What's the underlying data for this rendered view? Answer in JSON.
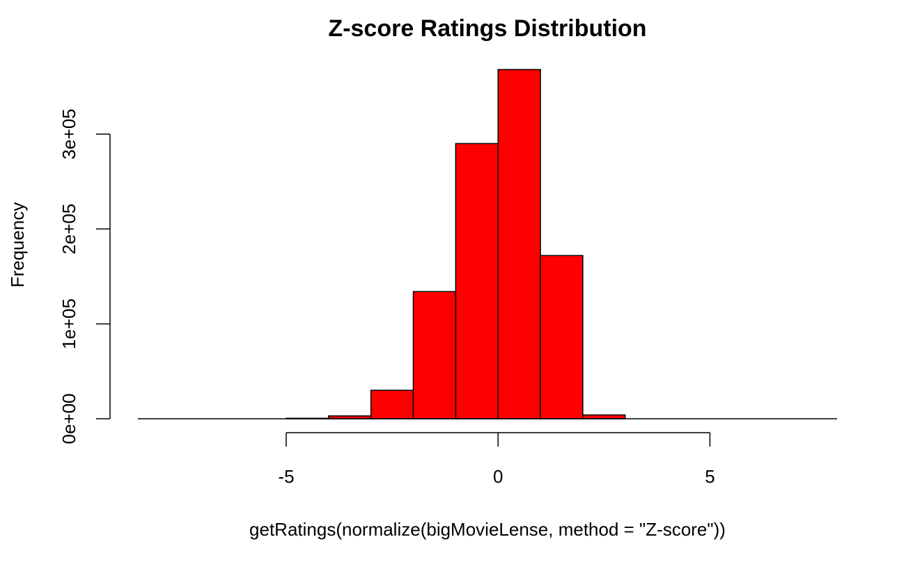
{
  "chart_data": {
    "type": "bar",
    "subtype": "histogram",
    "title": "Z-score Ratings Distribution",
    "xlabel": "getRatings(normalize(bigMovieLense, method = \"Z-score\"))",
    "ylabel": "Frequency",
    "bar_color": "#ff0000",
    "bar_border_color": "#000000",
    "bins": [
      {
        "x0": -5,
        "x1": -4,
        "count": 500
      },
      {
        "x0": -4,
        "x1": -3,
        "count": 3000
      },
      {
        "x0": -3,
        "x1": -2,
        "count": 30000
      },
      {
        "x0": -2,
        "x1": -1,
        "count": 134000
      },
      {
        "x0": -1,
        "x1": 0,
        "count": 290000
      },
      {
        "x0": 0,
        "x1": 1,
        "count": 368000
      },
      {
        "x0": 1,
        "x1": 2,
        "count": 172000
      },
      {
        "x0": 2,
        "x1": 3,
        "count": 4000
      }
    ],
    "xlim": [
      -8.5,
      8
    ],
    "ylim": [
      0,
      368000
    ],
    "x_baseline_range": [
      -8.5,
      8
    ],
    "x_ticks": [
      -5,
      0,
      5
    ],
    "x_tick_labels": [
      "-5",
      "0",
      "5"
    ],
    "y_ticks": [
      0,
      100000,
      200000,
      300000
    ],
    "y_tick_labels": [
      "0e+00",
      "1e+05",
      "2e+05",
      "3e+05"
    ],
    "grid": false,
    "legend": "none"
  }
}
